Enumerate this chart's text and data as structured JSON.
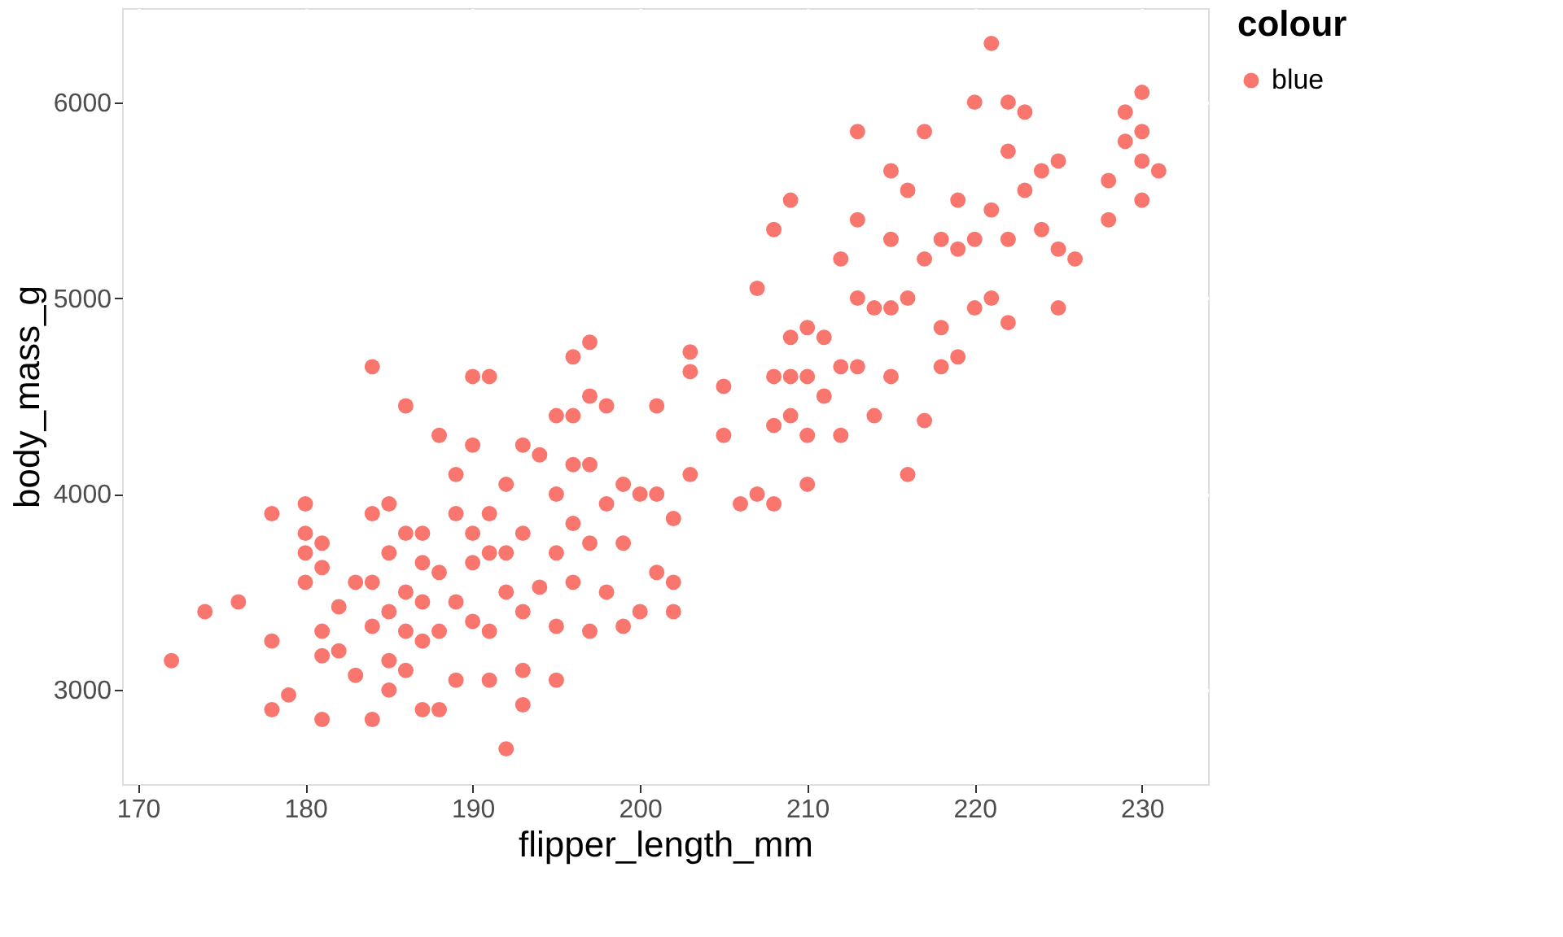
{
  "chart_data": {
    "type": "scatter",
    "xlabel": "flipper_length_mm",
    "ylabel": "body_mass_g",
    "legend_title": "colour",
    "xlim": [
      169.05,
      233.95
    ],
    "xticks": [
      170,
      180,
      190,
      200,
      210,
      220,
      230
    ],
    "ylim": [
      2520,
      6480
    ],
    "yticks": [
      3000,
      4000,
      5000,
      6000
    ],
    "grid": true,
    "legend": "right",
    "marker": "circle",
    "series": [
      {
        "name": "blue",
        "color": "#f8766d",
        "x": [
          172,
          174,
          176,
          178,
          178,
          178,
          179,
          180,
          180,
          180,
          180,
          181,
          181,
          181,
          181,
          181,
          182,
          182,
          183,
          183,
          184,
          184,
          184,
          184,
          184,
          185,
          185,
          185,
          185,
          185,
          186,
          186,
          186,
          186,
          186,
          187,
          187,
          187,
          187,
          187,
          188,
          188,
          188,
          188,
          189,
          189,
          189,
          189,
          190,
          190,
          190,
          190,
          190,
          191,
          191,
          191,
          191,
          191,
          192,
          192,
          192,
          192,
          193,
          193,
          193,
          193,
          193,
          194,
          194,
          195,
          195,
          195,
          195,
          195,
          196,
          196,
          196,
          196,
          196,
          197,
          197,
          197,
          197,
          197,
          198,
          198,
          198,
          199,
          199,
          199,
          200,
          200,
          201,
          201,
          201,
          202,
          202,
          202,
          203,
          203,
          203,
          205,
          205,
          206,
          207,
          207,
          208,
          208,
          208,
          208,
          209,
          209,
          209,
          209,
          210,
          210,
          210,
          210,
          211,
          211,
          212,
          212,
          212,
          213,
          213,
          213,
          213,
          214,
          214,
          215,
          215,
          215,
          215,
          216,
          216,
          216,
          217,
          217,
          217,
          218,
          218,
          218,
          219,
          219,
          219,
          220,
          220,
          220,
          221,
          221,
          221,
          222,
          222,
          222,
          222,
          223,
          223,
          224,
          224,
          225,
          225,
          225,
          226,
          228,
          228,
          229,
          229,
          230,
          230,
          230,
          230,
          231
        ],
        "values": [
          3150,
          3400,
          3450,
          3900,
          3250,
          2900,
          2975,
          3950,
          3800,
          3700,
          3550,
          3750,
          3625,
          3300,
          3175,
          2850,
          3425,
          3200,
          3550,
          3075,
          4650,
          3900,
          3550,
          3325,
          2850,
          3950,
          3700,
          3400,
          3150,
          3000,
          4450,
          3800,
          3500,
          3300,
          3100,
          3800,
          3650,
          3450,
          3250,
          2900,
          4300,
          3600,
          3300,
          2900,
          4100,
          3900,
          3450,
          3050,
          4600,
          4250,
          3800,
          3650,
          3350,
          4600,
          3900,
          3700,
          3300,
          3050,
          4050,
          3700,
          3500,
          2700,
          4250,
          3800,
          3400,
          3100,
          2925,
          4200,
          3525,
          4400,
          4000,
          3700,
          3325,
          3050,
          4700,
          4400,
          4150,
          3850,
          3550,
          4775,
          4500,
          4150,
          3750,
          3300,
          4450,
          3950,
          3500,
          4050,
          3750,
          3325,
          4000,
          3400,
          4450,
          4000,
          3600,
          3875,
          3550,
          3400,
          4725,
          4625,
          4100,
          4550,
          4300,
          3950,
          5050,
          4000,
          5350,
          4600,
          4350,
          3950,
          5500,
          4800,
          4600,
          4400,
          4850,
          4600,
          4300,
          4050,
          4800,
          4500,
          5200,
          4650,
          4300,
          5850,
          5400,
          5000,
          4650,
          4950,
          4400,
          5650,
          5300,
          4950,
          4600,
          5550,
          5000,
          4100,
          5850,
          5200,
          4375,
          5300,
          4850,
          4650,
          5500,
          5250,
          4700,
          6000,
          5300,
          4950,
          6300,
          5450,
          5000,
          5750,
          5300,
          4875,
          6000,
          5950,
          5550,
          5650,
          5350,
          5700,
          5250,
          4950,
          5200,
          5600,
          5400,
          5950,
          5800,
          6050,
          5700,
          5500,
          5850,
          5650
        ]
      }
    ]
  }
}
